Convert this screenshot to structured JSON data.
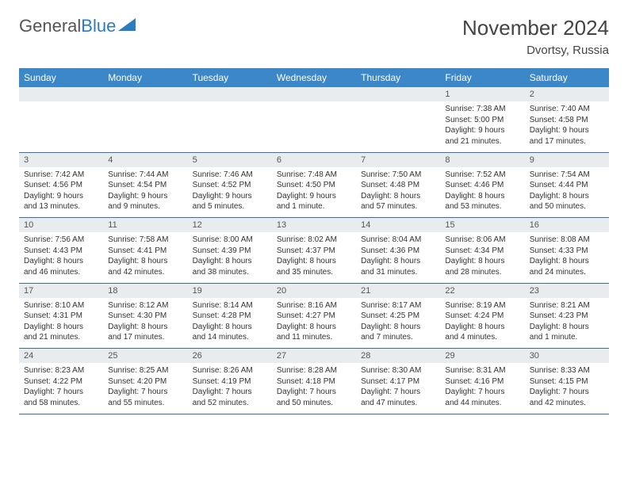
{
  "logo": {
    "text_gray": "General",
    "text_blue": "Blue"
  },
  "header": {
    "month_title": "November 2024",
    "location": "Dvortsy, Russia"
  },
  "colors": {
    "header_bg": "#3b87c8",
    "header_text": "#ffffff",
    "daynum_bg": "#e9ecef",
    "row_border": "#3b6fa0"
  },
  "weekdays": [
    "Sunday",
    "Monday",
    "Tuesday",
    "Wednesday",
    "Thursday",
    "Friday",
    "Saturday"
  ],
  "weeks": [
    [
      null,
      null,
      null,
      null,
      null,
      {
        "n": "1",
        "sr": "7:38 AM",
        "ss": "5:00 PM",
        "dl": "9 hours and 21 minutes."
      },
      {
        "n": "2",
        "sr": "7:40 AM",
        "ss": "4:58 PM",
        "dl": "9 hours and 17 minutes."
      }
    ],
    [
      {
        "n": "3",
        "sr": "7:42 AM",
        "ss": "4:56 PM",
        "dl": "9 hours and 13 minutes."
      },
      {
        "n": "4",
        "sr": "7:44 AM",
        "ss": "4:54 PM",
        "dl": "9 hours and 9 minutes."
      },
      {
        "n": "5",
        "sr": "7:46 AM",
        "ss": "4:52 PM",
        "dl": "9 hours and 5 minutes."
      },
      {
        "n": "6",
        "sr": "7:48 AM",
        "ss": "4:50 PM",
        "dl": "9 hours and 1 minute."
      },
      {
        "n": "7",
        "sr": "7:50 AM",
        "ss": "4:48 PM",
        "dl": "8 hours and 57 minutes."
      },
      {
        "n": "8",
        "sr": "7:52 AM",
        "ss": "4:46 PM",
        "dl": "8 hours and 53 minutes."
      },
      {
        "n": "9",
        "sr": "7:54 AM",
        "ss": "4:44 PM",
        "dl": "8 hours and 50 minutes."
      }
    ],
    [
      {
        "n": "10",
        "sr": "7:56 AM",
        "ss": "4:43 PM",
        "dl": "8 hours and 46 minutes."
      },
      {
        "n": "11",
        "sr": "7:58 AM",
        "ss": "4:41 PM",
        "dl": "8 hours and 42 minutes."
      },
      {
        "n": "12",
        "sr": "8:00 AM",
        "ss": "4:39 PM",
        "dl": "8 hours and 38 minutes."
      },
      {
        "n": "13",
        "sr": "8:02 AM",
        "ss": "4:37 PM",
        "dl": "8 hours and 35 minutes."
      },
      {
        "n": "14",
        "sr": "8:04 AM",
        "ss": "4:36 PM",
        "dl": "8 hours and 31 minutes."
      },
      {
        "n": "15",
        "sr": "8:06 AM",
        "ss": "4:34 PM",
        "dl": "8 hours and 28 minutes."
      },
      {
        "n": "16",
        "sr": "8:08 AM",
        "ss": "4:33 PM",
        "dl": "8 hours and 24 minutes."
      }
    ],
    [
      {
        "n": "17",
        "sr": "8:10 AM",
        "ss": "4:31 PM",
        "dl": "8 hours and 21 minutes."
      },
      {
        "n": "18",
        "sr": "8:12 AM",
        "ss": "4:30 PM",
        "dl": "8 hours and 17 minutes."
      },
      {
        "n": "19",
        "sr": "8:14 AM",
        "ss": "4:28 PM",
        "dl": "8 hours and 14 minutes."
      },
      {
        "n": "20",
        "sr": "8:16 AM",
        "ss": "4:27 PM",
        "dl": "8 hours and 11 minutes."
      },
      {
        "n": "21",
        "sr": "8:17 AM",
        "ss": "4:25 PM",
        "dl": "8 hours and 7 minutes."
      },
      {
        "n": "22",
        "sr": "8:19 AM",
        "ss": "4:24 PM",
        "dl": "8 hours and 4 minutes."
      },
      {
        "n": "23",
        "sr": "8:21 AM",
        "ss": "4:23 PM",
        "dl": "8 hours and 1 minute."
      }
    ],
    [
      {
        "n": "24",
        "sr": "8:23 AM",
        "ss": "4:22 PM",
        "dl": "7 hours and 58 minutes."
      },
      {
        "n": "25",
        "sr": "8:25 AM",
        "ss": "4:20 PM",
        "dl": "7 hours and 55 minutes."
      },
      {
        "n": "26",
        "sr": "8:26 AM",
        "ss": "4:19 PM",
        "dl": "7 hours and 52 minutes."
      },
      {
        "n": "27",
        "sr": "8:28 AM",
        "ss": "4:18 PM",
        "dl": "7 hours and 50 minutes."
      },
      {
        "n": "28",
        "sr": "8:30 AM",
        "ss": "4:17 PM",
        "dl": "7 hours and 47 minutes."
      },
      {
        "n": "29",
        "sr": "8:31 AM",
        "ss": "4:16 PM",
        "dl": "7 hours and 44 minutes."
      },
      {
        "n": "30",
        "sr": "8:33 AM",
        "ss": "4:15 PM",
        "dl": "7 hours and 42 minutes."
      }
    ]
  ],
  "labels": {
    "sunrise": "Sunrise:",
    "sunset": "Sunset:",
    "daylight": "Daylight:"
  }
}
